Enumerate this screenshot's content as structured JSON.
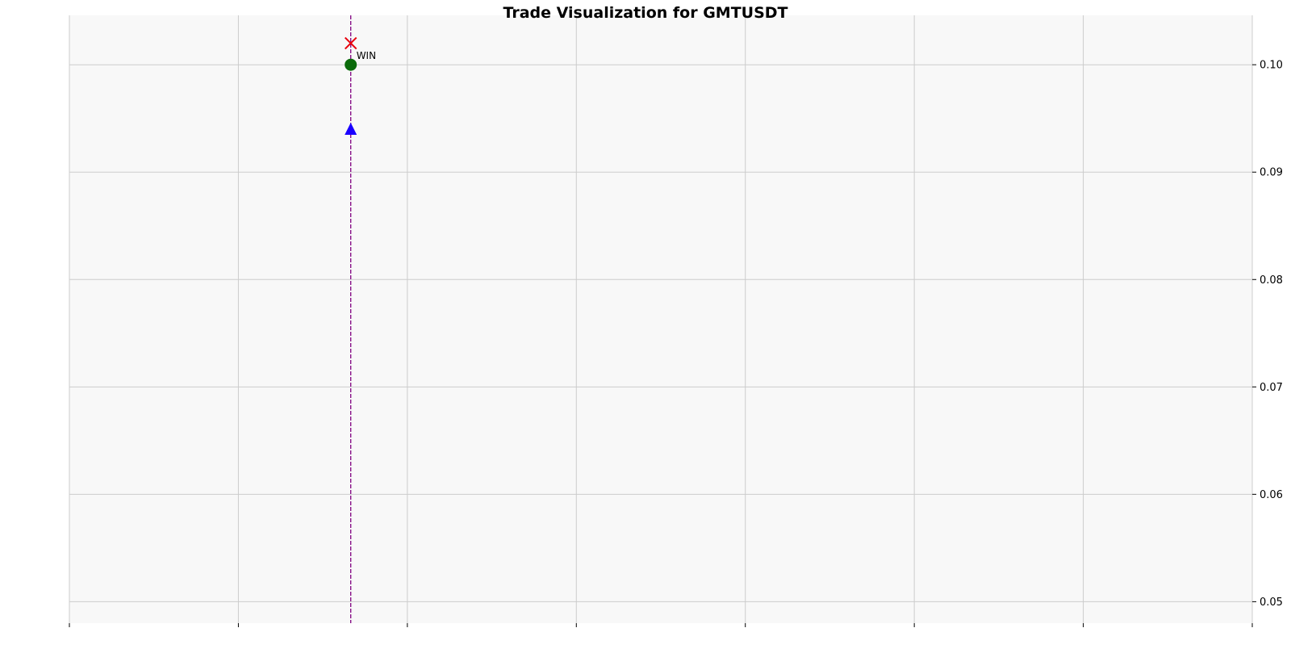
{
  "chart_data": {
    "type": "scatter",
    "title": "Trade Visualization for GMTUSDT",
    "xlabel": "",
    "ylabel": "",
    "y_axis_side": "right",
    "ylim": [
      0.048,
      0.1046
    ],
    "xlim": [
      0,
      7
    ],
    "x_tick_values": [
      0,
      1,
      2,
      3,
      4,
      5,
      6,
      7
    ],
    "x_tick_labels": [
      "",
      "",
      "",
      "",
      "",
      "",
      "",
      ""
    ],
    "y_ticks": [
      0.05,
      0.06,
      0.07,
      0.08,
      0.09,
      0.1
    ],
    "y_tick_labels": [
      "0.05",
      "0.06",
      "0.07",
      "0.08",
      "0.09",
      "0.10"
    ],
    "grid": true,
    "background": "#f8f8f8",
    "grid_color": "#cccccc",
    "vertical_line": {
      "x": 1.665,
      "color": "#800080",
      "style": "dashed"
    },
    "series": [
      {
        "marker": "triangle-up",
        "color": "#1a00ff",
        "points": [
          {
            "x": 1.665,
            "y": 0.094
          }
        ]
      },
      {
        "marker": "circle",
        "color": "#0b6b0b",
        "points": [
          {
            "x": 1.665,
            "y": 0.1
          }
        ]
      },
      {
        "marker": "x-cross",
        "color": "#e8000b",
        "points": [
          {
            "x": 1.665,
            "y": 0.102
          }
        ]
      }
    ],
    "annotations": [
      {
        "text": "WIN",
        "x": 1.665,
        "y": 0.1
      }
    ]
  }
}
